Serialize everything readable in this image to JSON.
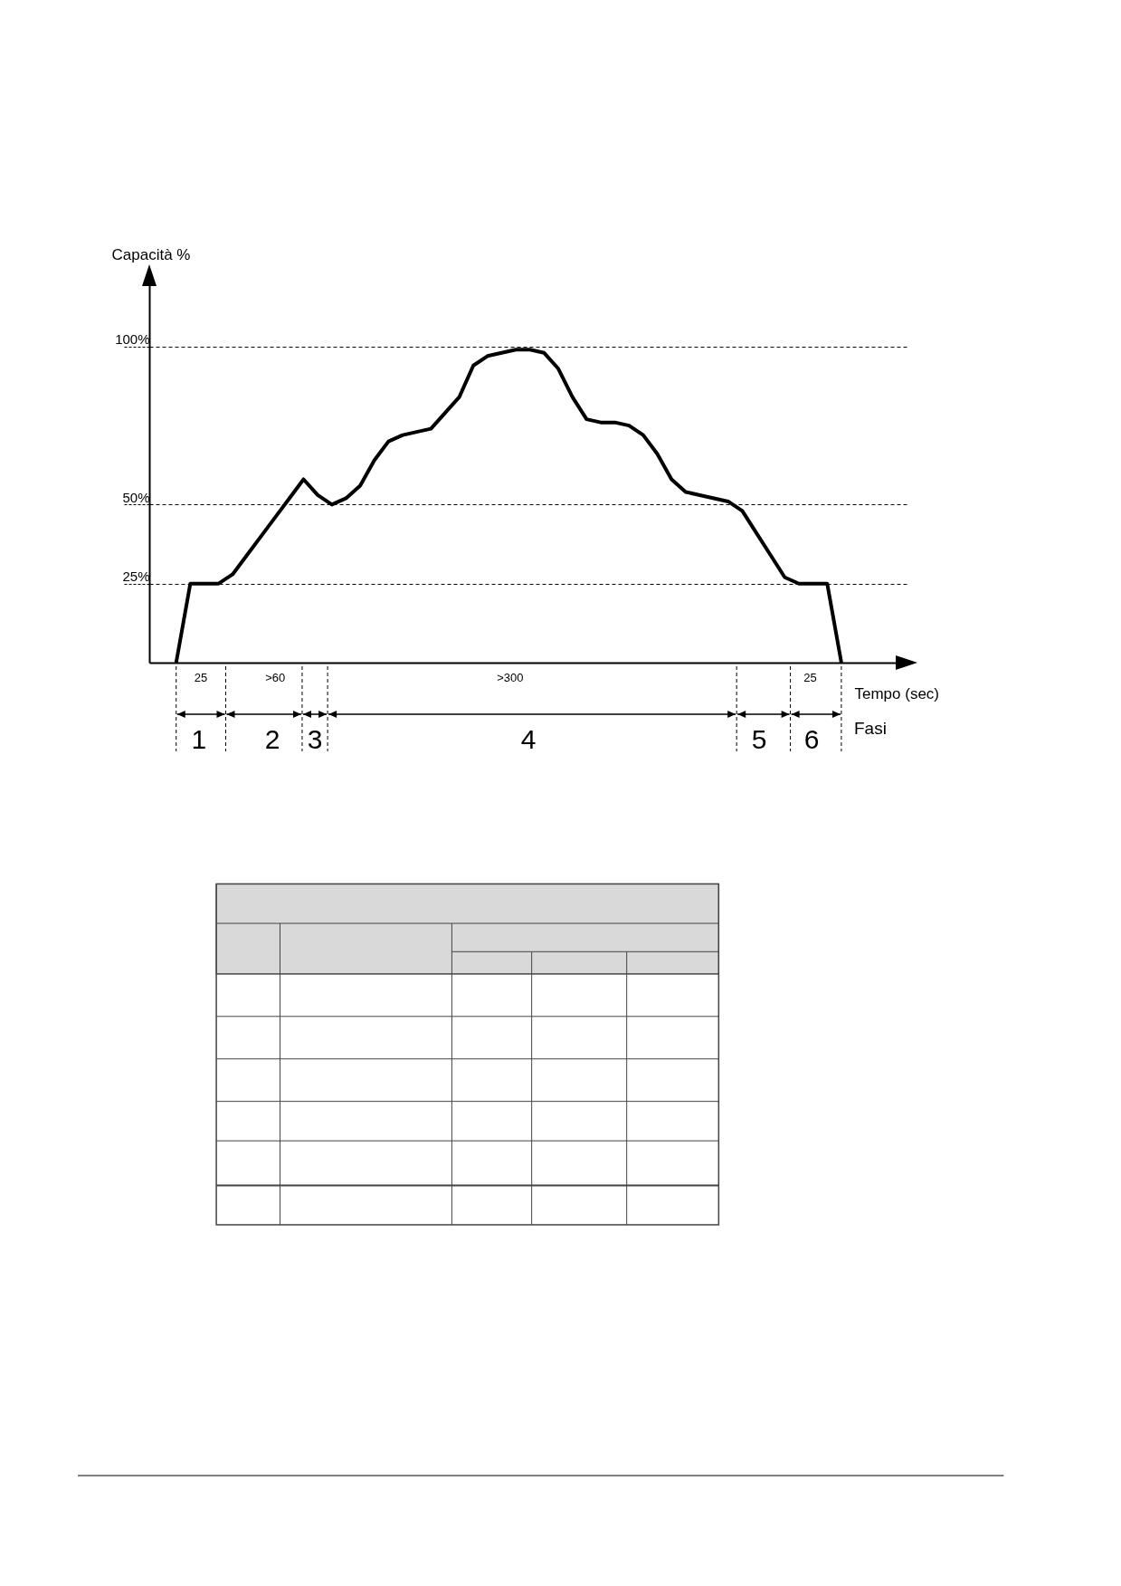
{
  "chart_data": {
    "type": "line",
    "ylabel": "Capacità %",
    "xlabel": "Tempo (sec)",
    "categories": [
      null,
      null,
      null,
      null,
      null,
      null,
      null,
      null,
      null,
      null,
      null,
      null,
      null,
      null,
      null,
      null,
      null,
      null,
      null,
      null,
      null,
      null,
      null,
      null,
      null,
      null,
      null,
      null,
      null,
      null,
      null,
      null,
      null,
      null,
      null,
      null,
      null,
      null,
      null,
      null,
      null,
      null,
      null,
      null,
      null,
      null,
      null,
      null
    ],
    "values": [
      0,
      25,
      25,
      25,
      28,
      34,
      40,
      46,
      52,
      58,
      53,
      50,
      52,
      56,
      64,
      70,
      72,
      73,
      74,
      79,
      84,
      94,
      97,
      98,
      99,
      99,
      98,
      93,
      84,
      77,
      76,
      76,
      75,
      72,
      66,
      58,
      54,
      53,
      52,
      51,
      48,
      41,
      34,
      27,
      25,
      25,
      25,
      0
    ],
    "color": "#000000",
    "line_style": "solid",
    "marker": "none",
    "ylim": [
      0,
      120
    ],
    "yticks": [
      {
        "value": 25,
        "label": "25%"
      },
      {
        "value": 50,
        "label": "50%"
      },
      {
        "value": 100,
        "label": "100%"
      }
    ],
    "grid": "y",
    "tick_labels": "y",
    "annotations": [
      "25",
      ">60",
      ">300",
      "25",
      "1",
      "2",
      "3",
      "4",
      "5",
      "6",
      "Fasi"
    ]
  }
}
